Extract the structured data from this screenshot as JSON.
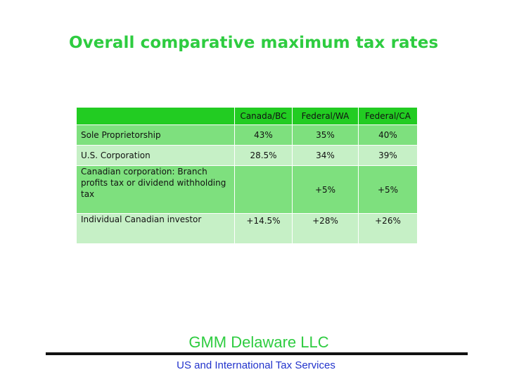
{
  "title": "Overall comparative maximum tax rates",
  "table": {
    "headers": [
      "",
      "Canada/BC",
      "Federal/WA",
      "Federal/CA"
    ],
    "rows": [
      {
        "label": "Sole Proprietorship",
        "values": [
          "43%",
          "35%",
          "40%"
        ]
      },
      {
        "label": "U.S. Corporation",
        "values": [
          "28.5%",
          "34%",
          "39%"
        ]
      },
      {
        "label": "Canadian corporation: Branch profits tax or dividend withholding tax",
        "values": [
          "",
          "+5%",
          "+5%"
        ]
      },
      {
        "label": "Individual Canadian investor",
        "values": [
          "+14.5%",
          "+28%",
          "+26%"
        ]
      }
    ]
  },
  "footer": {
    "company": "GMM Delaware LLC",
    "tagline": "US and International Tax Services"
  },
  "colors": {
    "title": "#2ecc40",
    "header_fill": "#22cc22",
    "row_dark": "#7ee07e",
    "row_light": "#c6f0c6",
    "tagline": "#2233cc"
  }
}
